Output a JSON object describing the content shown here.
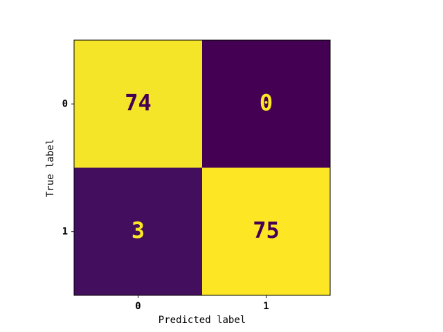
{
  "chart_data": {
    "type": "heatmap",
    "x_label": "Predicted label",
    "y_label": "True label",
    "x_categories": [
      "0",
      "1"
    ],
    "y_categories": [
      "0",
      "1"
    ],
    "values": [
      [
        74,
        0
      ],
      [
        3,
        75
      ]
    ],
    "colormap": [
      "#440154",
      "#3b528b",
      "#21918c",
      "#5ec962",
      "#fde725"
    ]
  }
}
